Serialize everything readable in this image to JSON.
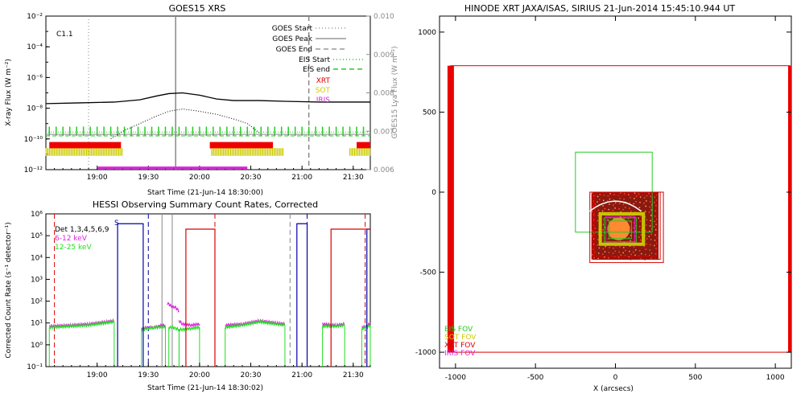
{
  "chart_data": [
    {
      "type": "line",
      "title": "GOES15 XRS",
      "xlabel": "Start Time (21-Jun-14 18:30:00)",
      "ylabel": "X-ray Flux (W m⁻²)",
      "y2label": "GOES15 Lya Flux (W m⁻²)",
      "flare_class": "C1.1",
      "x_ticks": [
        "19:00",
        "19:30",
        "20:00",
        "20:30",
        "21:00",
        "21:30"
      ],
      "y_ticks": [
        "10⁻²",
        "10⁻⁴",
        "10⁻⁶",
        "10⁻⁸",
        "10⁻¹⁰",
        "10⁻¹²"
      ],
      "y2_ticks": [
        "0.010",
        "0.009",
        "0.008",
        "0.007",
        "0.006"
      ],
      "y_log_range": [
        -12,
        -2
      ],
      "y2_range": [
        0.006,
        0.01
      ],
      "x_range_min": [
        0,
        190
      ],
      "legend": [
        {
          "label": "GOES Start",
          "color": "#999999",
          "style": "dotted"
        },
        {
          "label": "GOES Peak",
          "color": "#999999",
          "style": "solid"
        },
        {
          "label": "GOES End",
          "color": "#999999",
          "style": "dashed"
        },
        {
          "label": "EIS Start",
          "color": "#22cc22",
          "style": "dotted"
        },
        {
          "label": "EIS end",
          "color": "#22cc22",
          "style": "dashed"
        },
        {
          "label": "XRT",
          "color": "#dd0000",
          "style": "text"
        },
        {
          "label": "SOT",
          "color": "#cccc00",
          "style": "text"
        },
        {
          "label": "IRIS",
          "color": "#dd22dd",
          "style": "text"
        }
      ],
      "markers_min": {
        "goes_start": 25,
        "goes_peak": 76,
        "goes_end": 154
      },
      "xray_flux": {
        "x": [
          0,
          20,
          40,
          55,
          65,
          72,
          80,
          90,
          100,
          110,
          125,
          140,
          160,
          175,
          190
        ],
        "y": [
          -7.7,
          -7.65,
          -7.6,
          -7.45,
          -7.2,
          -7.05,
          -7.0,
          -7.15,
          -7.4,
          -7.5,
          -7.5,
          -7.55,
          -7.6,
          -7.6,
          -7.6
        ]
      },
      "lya_flux": {
        "x": [
          38,
          45,
          55,
          65,
          72,
          80,
          90,
          100,
          110,
          118,
          125
        ],
        "y": [
          -10.0,
          -9.5,
          -9.0,
          -8.5,
          -8.2,
          -8.05,
          -8.2,
          -8.4,
          -8.7,
          -9.0,
          -9.6
        ]
      },
      "xrt_intervals": [
        [
          2,
          44
        ],
        [
          96,
          133
        ],
        [
          182,
          190
        ]
      ],
      "sot_intervals": [
        [
          0,
          45
        ],
        [
          97,
          139
        ],
        [
          178,
          190
        ]
      ],
      "iris_intervals": [
        [
          30,
          118
        ]
      ],
      "eis_period_min": 4
    },
    {
      "type": "line",
      "title": "HESSI Observing Summary Count Rates, Corrected",
      "xlabel": "Start Time (21-Jun-14 18:30:02)",
      "ylabel": "Corrected Count Rate (s⁻¹ detector⁻¹)",
      "x_ticks": [
        "19:00",
        "19:30",
        "20:00",
        "20:30",
        "21:00",
        "21:30"
      ],
      "y_ticks": [
        "10⁶",
        "10⁵",
        "10⁴",
        "10³",
        "10²",
        "10¹",
        "10⁰",
        "10⁻¹"
      ],
      "y_log_range": [
        -1,
        6
      ],
      "legend": [
        {
          "label": "Det 1,3,4,5,6,9",
          "color": "#000000"
        },
        {
          "label": "6-12 keV",
          "color": "#dd22dd"
        },
        {
          "label": "12-25 keV",
          "color": "#22dd22"
        }
      ],
      "annotation": "S",
      "series": [
        {
          "name": "6-12 keV",
          "color": "#dd22dd",
          "segments": [
            {
              "x": [
                2,
                15,
                25,
                35,
                40
              ],
              "y": [
                0.85,
                0.9,
                0.95,
                1.05,
                1.1
              ]
            },
            {
              "x": [
                56,
                60,
                63,
                66,
                68,
                70
              ],
              "y": [
                0.75,
                0.8,
                0.8,
                0.85,
                0.9,
                0.9
              ]
            },
            {
              "x": [
                71,
                72,
                74,
                76,
                78
              ],
              "y": [
                1.9,
                1.85,
                1.75,
                1.7,
                1.55
              ]
            },
            {
              "x": [
                78,
                80,
                85,
                90
              ],
              "y": [
                1.1,
                0.95,
                0.9,
                0.95
              ]
            },
            {
              "x": [
                105,
                115,
                125,
                135,
                140
              ],
              "y": [
                0.9,
                0.95,
                1.1,
                1.0,
                0.95
              ]
            },
            {
              "x": [
                162,
                170,
                175
              ],
              "y": [
                0.95,
                0.9,
                0.95
              ]
            },
            {
              "x": [
                185,
                188,
                190
              ],
              "y": [
                0.8,
                0.85,
                1.0
              ]
            }
          ]
        },
        {
          "name": "12-25 keV",
          "color": "#22dd22",
          "segments": [
            {
              "x": [
                2,
                15,
                25,
                35,
                40
              ],
              "y": [
                0.8,
                0.85,
                0.9,
                1.0,
                1.05
              ]
            },
            {
              "x": [
                56,
                60,
                63,
                66,
                68,
                70
              ],
              "y": [
                0.7,
                0.75,
                0.78,
                0.8,
                0.8,
                0.85
              ]
            },
            {
              "x": [
                72,
                74,
                76,
                78
              ],
              "y": [
                0.8,
                0.8,
                0.75,
                0.7
              ]
            },
            {
              "x": [
                78,
                80,
                85,
                90
              ],
              "y": [
                0.7,
                0.7,
                0.75,
                0.8
              ]
            },
            {
              "x": [
                105,
                115,
                125,
                135,
                140
              ],
              "y": [
                0.8,
                0.9,
                1.05,
                0.95,
                0.9
              ]
            },
            {
              "x": [
                162,
                170,
                175
              ],
              "y": [
                0.85,
                0.85,
                0.9
              ]
            },
            {
              "x": [
                185,
                188,
                190
              ],
              "y": [
                0.75,
                0.8,
                0.9
              ]
            }
          ]
        },
        {
          "name": "Det 1,3,4,5,6,9",
          "color": "#0000aa",
          "segments": [
            {
              "x": [
                42,
                42,
                57,
                57
              ],
              "y": [
                -1,
                5.55,
                5.55,
                -1
              ]
            },
            {
              "x": [
                147,
                147,
                153,
                153
              ],
              "y": [
                -1,
                5.55,
                5.55,
                -1
              ]
            },
            {
              "x": [
                188,
                188,
                190
              ],
              "y": [
                -1,
                5.3,
                5.3
              ]
            }
          ]
        },
        {
          "name": "attenuator",
          "color": "#dd0000",
          "segments": [
            {
              "x": [
                82,
                82,
                99,
                99
              ],
              "y": [
                -1,
                5.3,
                5.3,
                -1
              ]
            },
            {
              "x": [
                167,
                167,
                190
              ],
              "y": [
                -1,
                5.3,
                5.3
              ]
            }
          ]
        }
      ],
      "dashed_markers_min": {
        "red": [
          5,
          99,
          187
        ],
        "blue": [
          60,
          153
        ],
        "gray": [
          143
        ]
      },
      "solid_markers_min": {
        "gray": [
          68,
          74
        ]
      }
    },
    {
      "type": "scatter",
      "title": "HINODE XRT JAXA/ISAS, SIRIUS 21-Jun-2014 15:45:10.944 UT",
      "xlabel": "X (arcsecs)",
      "ylabel": "",
      "x_ticks": [
        "-1000",
        "-500",
        "0",
        "500",
        "1000"
      ],
      "y_ticks": [
        "1000",
        "500",
        "0",
        "-500",
        "-1000"
      ],
      "xlim": [
        -1100,
        1100
      ],
      "ylim": [
        -1100,
        1100
      ],
      "legend": [
        {
          "label": "EIS FOV",
          "color": "#22cc22"
        },
        {
          "label": "SOT FOV",
          "color": "#cccc00"
        },
        {
          "label": "XRT FOV",
          "color": "#dd0000"
        },
        {
          "label": "IRIS FOV",
          "color": "#dd22dd"
        }
      ],
      "fov_boxes": [
        {
          "kind": "xrt",
          "color": "#dd0000",
          "x": [
            -1030,
            1090
          ],
          "y": [
            -1000,
            790
          ]
        },
        {
          "kind": "eis",
          "color": "#22cc22",
          "x": [
            -250,
            230
          ],
          "y": [
            -250,
            250
          ]
        },
        {
          "kind": "xrt",
          "color": "#dd0000",
          "x": [
            -160,
            300
          ],
          "y": [
            -440,
            0
          ]
        },
        {
          "kind": "xrt",
          "color": "#dd0000",
          "x": [
            -140,
            280
          ],
          "y": [
            -420,
            0
          ]
        },
        {
          "kind": "xrt",
          "color": "#dd0000",
          "x": [
            -130,
            260
          ],
          "y": [
            -400,
            -20
          ]
        },
        {
          "kind": "sot",
          "color": "#cccc00",
          "x": [
            -100,
            180
          ],
          "y": [
            -330,
            -130
          ]
        },
        {
          "kind": "sot",
          "color": "#cccc00",
          "x": [
            -90,
            170
          ],
          "y": [
            -320,
            -140
          ]
        },
        {
          "kind": "eis",
          "color": "#22cc22",
          "x": [
            -70,
            130
          ],
          "y": [
            -310,
            -160
          ]
        },
        {
          "kind": "eis",
          "color": "#22cc22",
          "x": [
            -40,
            100
          ],
          "y": [
            -290,
            -180
          ]
        },
        {
          "kind": "iris",
          "color": "#dd22dd",
          "x": [
            -60,
            120
          ],
          "y": [
            -310,
            -150
          ]
        }
      ],
      "region_center": [
        0,
        -200
      ],
      "region_radius": 230
    }
  ]
}
